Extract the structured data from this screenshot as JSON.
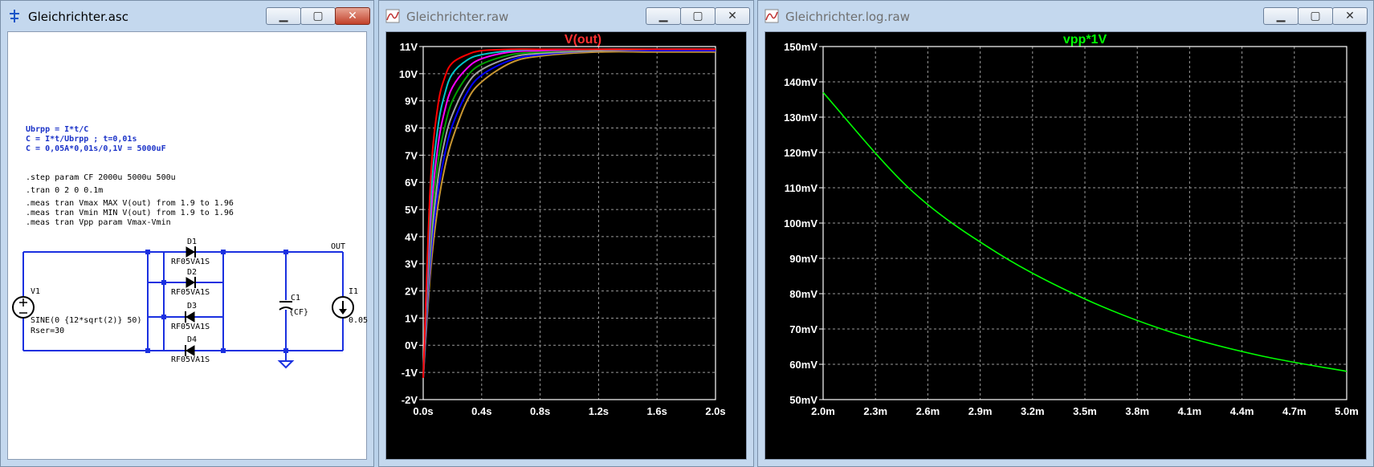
{
  "windows": {
    "schematic": {
      "title": "Gleichrichter.asc",
      "notes_blue": [
        "Ubrpp = I*t/C",
        "C = I*t/Ubrpp ; t=0,01s",
        "C = 0,05A*0,01s/0,1V = 5000uF"
      ],
      "directives": [
        ".step param CF 2000u 5000u 500u",
        ".tran 0 2 0 0.1m",
        ".meas tran Vmax MAX V(out) from 1.9 to 1.96",
        ".meas tran Vmin MIN V(out) from 1.9 to 1.96",
        ".meas tran Vpp param Vmax-Vmin"
      ],
      "components": {
        "v1_name": "V1",
        "v1_value": "SINE(0 {12*sqrt(2)} 50)",
        "v1_rser": "Rser=30",
        "d1_name": "D1",
        "d2_name": "D2",
        "d3_name": "D3",
        "d4_name": "D4",
        "diode_model": "RF05VA1S",
        "c1_name": "C1",
        "c1_value": "{CF}",
        "i1_name": "I1",
        "i1_value": "0.05",
        "net_out": "OUT"
      }
    },
    "waveform": {
      "title": "Gleichrichter.raw",
      "trace_label": "V(out)",
      "trace_label_color": "#ff3030"
    },
    "log_plot": {
      "title": "Gleichrichter.log.raw",
      "trace_label": "vpp*1V",
      "trace_label_color": "#00ff00"
    }
  },
  "chart_data": [
    {
      "type": "line",
      "title": "V(out)",
      "x_ticks": [
        "0.0s",
        "0.4s",
        "0.8s",
        "1.2s",
        "1.6s",
        "2.0s"
      ],
      "y_ticks": [
        "11V",
        "10V",
        "9V",
        "8V",
        "7V",
        "6V",
        "5V",
        "4V",
        "3V",
        "2V",
        "1V",
        "0V",
        "-1V",
        "-2V"
      ],
      "xlim": [
        0,
        2.0
      ],
      "ylim": [
        -2,
        11
      ],
      "grid": true,
      "series_colors": [
        "#ff0000",
        "#00c8c8",
        "#ff00ff",
        "#00a000",
        "#a0a0a0",
        "#0000ff",
        "#c89632"
      ],
      "series": [
        {
          "x": [
            0,
            0.05,
            0.1,
            0.15,
            0.2,
            0.3,
            0.4,
            0.6,
            0.8,
            1.2,
            1.6,
            2.0
          ],
          "values": [
            -1.2,
            6.0,
            8.8,
            9.9,
            10.4,
            10.7,
            10.85,
            10.9,
            10.9,
            10.9,
            10.9,
            10.9
          ]
        },
        {
          "x": [
            0,
            0.05,
            0.1,
            0.15,
            0.2,
            0.3,
            0.4,
            0.6,
            0.8,
            1.2,
            1.6,
            2.0
          ],
          "values": [
            -1.2,
            5.2,
            8.0,
            9.3,
            10.0,
            10.5,
            10.7,
            10.85,
            10.9,
            10.9,
            10.9,
            10.9
          ]
        },
        {
          "x": [
            0,
            0.05,
            0.1,
            0.15,
            0.2,
            0.3,
            0.4,
            0.6,
            0.8,
            1.2,
            1.6,
            2.0
          ],
          "values": [
            -1.2,
            4.5,
            7.3,
            8.7,
            9.5,
            10.2,
            10.55,
            10.8,
            10.85,
            10.9,
            10.9,
            10.9
          ]
        },
        {
          "x": [
            0,
            0.05,
            0.1,
            0.15,
            0.2,
            0.3,
            0.4,
            0.6,
            0.8,
            1.2,
            1.6,
            2.0
          ],
          "values": [
            -1.2,
            4.0,
            6.7,
            8.1,
            9.0,
            9.9,
            10.35,
            10.7,
            10.8,
            10.9,
            10.9,
            10.9
          ]
        },
        {
          "x": [
            0,
            0.05,
            0.1,
            0.15,
            0.2,
            0.3,
            0.4,
            0.6,
            0.8,
            1.2,
            1.6,
            2.0
          ],
          "values": [
            -1.2,
            3.5,
            6.1,
            7.6,
            8.5,
            9.6,
            10.15,
            10.6,
            10.75,
            10.85,
            10.9,
            10.9
          ]
        },
        {
          "x": [
            0,
            0.05,
            0.1,
            0.15,
            0.2,
            0.3,
            0.4,
            0.6,
            0.8,
            1.2,
            1.6,
            2.0
          ],
          "values": [
            -1.2,
            3.1,
            5.6,
            7.1,
            8.1,
            9.3,
            9.95,
            10.5,
            10.7,
            10.85,
            10.85,
            10.85
          ]
        },
        {
          "x": [
            0,
            0.05,
            0.1,
            0.15,
            0.2,
            0.3,
            0.4,
            0.6,
            0.8,
            1.2,
            1.6,
            2.0
          ],
          "values": [
            -1.2,
            2.7,
            5.1,
            6.6,
            7.6,
            9.0,
            9.7,
            10.4,
            10.65,
            10.8,
            10.8,
            10.8
          ]
        }
      ]
    },
    {
      "type": "line",
      "title": "vpp*1V",
      "x_ticks": [
        "2.0m",
        "2.3m",
        "2.6m",
        "2.9m",
        "3.2m",
        "3.5m",
        "3.8m",
        "4.1m",
        "4.4m",
        "4.7m",
        "5.0m"
      ],
      "y_ticks": [
        "150mV",
        "140mV",
        "130mV",
        "120mV",
        "110mV",
        "100mV",
        "90mV",
        "80mV",
        "70mV",
        "60mV",
        "50mV"
      ],
      "xlim": [
        0.002,
        0.005
      ],
      "ylim": [
        50,
        150
      ],
      "grid": true,
      "series_colors": [
        "#00ff00"
      ],
      "series": [
        {
          "x": [
            0.002,
            0.0025,
            0.003,
            0.0035,
            0.004,
            0.0045,
            0.005
          ],
          "values": [
            137,
            109.5,
            91.5,
            78.5,
            69,
            62.5,
            58
          ]
        }
      ]
    }
  ]
}
